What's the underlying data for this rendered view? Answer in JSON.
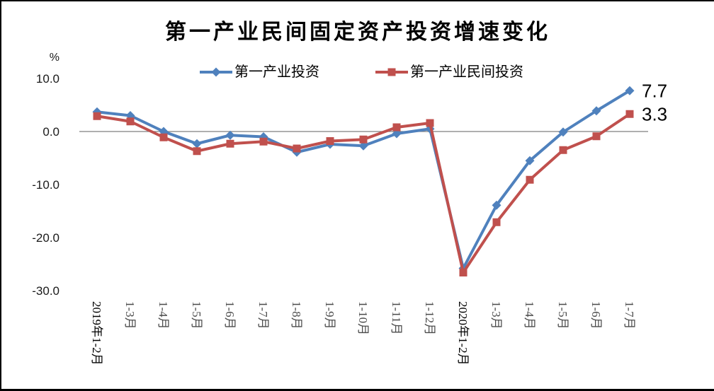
{
  "chart_data": {
    "type": "line",
    "title": "第一产业民间固定资产投资增速变化",
    "unit_label": "%",
    "legend_position": "top",
    "gridlines": "zero-line-only",
    "categories": [
      "2019年1-2月",
      "1-3月",
      "1-4月",
      "1-5月",
      "1-6月",
      "1-7月",
      "1-8月",
      "1-9月",
      "1-10月",
      "1-11月",
      "1-12月",
      "2020年1-2月",
      "1-3月",
      "1-4月",
      "1-5月",
      "1-6月",
      "1-7月"
    ],
    "series": [
      {
        "name": "第一产业投资",
        "color": "#4F81BD",
        "marker": "diamond",
        "values": [
          3.7,
          3.0,
          0.0,
          -2.3,
          -0.7,
          -1.0,
          -3.9,
          -2.4,
          -2.7,
          -0.4,
          0.5,
          -25.8,
          -13.9,
          -5.5,
          -0.1,
          3.9,
          7.7
        ]
      },
      {
        "name": "第一产业民间投资",
        "color": "#C0504D",
        "marker": "square",
        "values": [
          2.9,
          1.9,
          -1.1,
          -3.7,
          -2.3,
          -1.9,
          -3.2,
          -1.8,
          -1.5,
          0.8,
          1.6,
          -26.6,
          -17.1,
          -9.1,
          -3.5,
          -0.9,
          3.3
        ]
      }
    ],
    "end_labels": [
      "7.7",
      "3.3"
    ],
    "yticks": [
      10.0,
      0.0,
      -10.0,
      -20.0,
      -30.0
    ],
    "ytick_labels": [
      "10.0",
      "0.0",
      "-10.0",
      "-20.0",
      "-30.0"
    ],
    "ylim": [
      -30,
      10
    ],
    "xlabel": "",
    "ylabel": "%"
  },
  "styles": {
    "zero_line_color": "#7f7f7f",
    "axis_text_color": "#1a1a1a",
    "month_label_color": "#4a4a4a",
    "year_label_color": "#000000",
    "data_label_color": "#000000"
  }
}
